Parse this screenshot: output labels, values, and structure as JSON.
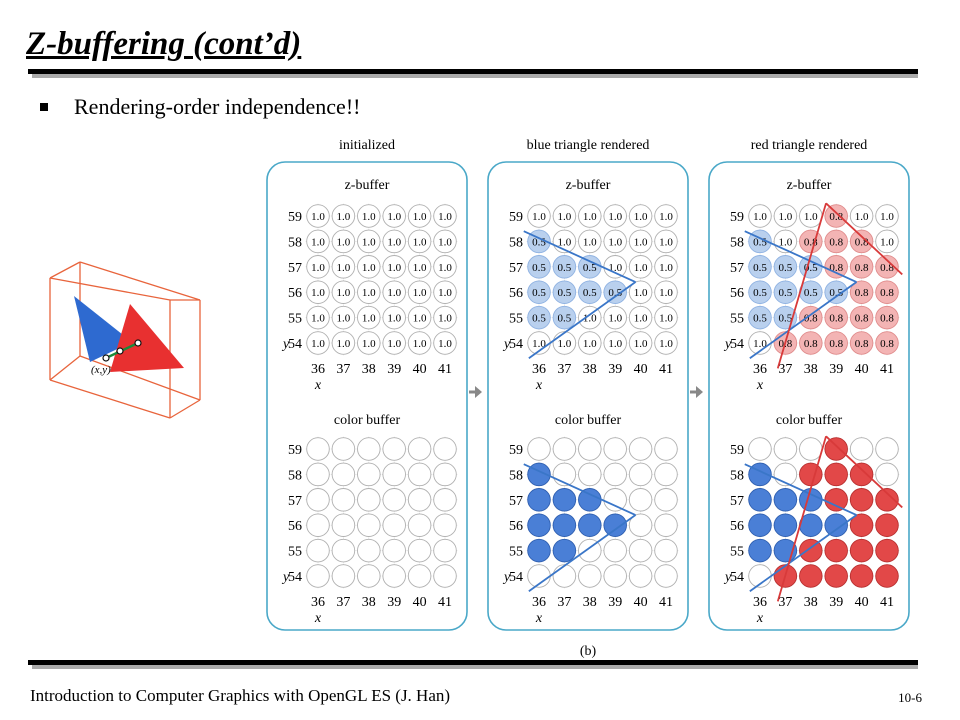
{
  "slide": {
    "title": "Z-buffering (cont’d)",
    "bullet": "Rendering-order independence!!",
    "footer": "Introduction to Computer Graphics with OpenGL ES (J. Han)",
    "page_number": "10-6"
  },
  "figure": {
    "caption": "(b)",
    "point_label": "(x,y)",
    "buffer_labels": {
      "z": "z-buffer",
      "color": "color buffer"
    },
    "axis_labels": {
      "x": "x",
      "y": "y"
    },
    "x_ticks": [
      "36",
      "37",
      "38",
      "39",
      "40",
      "41"
    ],
    "y_ticks": [
      "59",
      "58",
      "57",
      "56",
      "55",
      "54"
    ],
    "panels": [
      {
        "title": "initialized",
        "z_values": [
          [
            "1.0",
            "1.0",
            "1.0",
            "1.0",
            "1.0",
            "1.0"
          ],
          [
            "1.0",
            "1.0",
            "1.0",
            "1.0",
            "1.0",
            "1.0"
          ],
          [
            "1.0",
            "1.0",
            "1.0",
            "1.0",
            "1.0",
            "1.0"
          ],
          [
            "1.0",
            "1.0",
            "1.0",
            "1.0",
            "1.0",
            "1.0"
          ],
          [
            "1.0",
            "1.0",
            "1.0",
            "1.0",
            "1.0",
            "1.0"
          ],
          [
            "1.0",
            "1.0",
            "1.0",
            "1.0",
            "1.0",
            "1.0"
          ]
        ],
        "colors": [
          [
            "n",
            "n",
            "n",
            "n",
            "n",
            "n"
          ],
          [
            "n",
            "n",
            "n",
            "n",
            "n",
            "n"
          ],
          [
            "n",
            "n",
            "n",
            "n",
            "n",
            "n"
          ],
          [
            "n",
            "n",
            "n",
            "n",
            "n",
            "n"
          ],
          [
            "n",
            "n",
            "n",
            "n",
            "n",
            "n"
          ],
          [
            "n",
            "n",
            "n",
            "n",
            "n",
            "n"
          ]
        ]
      },
      {
        "title": "blue triangle rendered",
        "z_values": [
          [
            "1.0",
            "1.0",
            "1.0",
            "1.0",
            "1.0",
            "1.0"
          ],
          [
            "0.5",
            "1.0",
            "1.0",
            "1.0",
            "1.0",
            "1.0"
          ],
          [
            "0.5",
            "0.5",
            "0.5",
            "1.0",
            "1.0",
            "1.0"
          ],
          [
            "0.5",
            "0.5",
            "0.5",
            "0.5",
            "1.0",
            "1.0"
          ],
          [
            "0.5",
            "0.5",
            "1.0",
            "1.0",
            "1.0",
            "1.0"
          ],
          [
            "1.0",
            "1.0",
            "1.0",
            "1.0",
            "1.0",
            "1.0"
          ]
        ],
        "colors": [
          [
            "n",
            "n",
            "n",
            "n",
            "n",
            "n"
          ],
          [
            "b",
            "n",
            "n",
            "n",
            "n",
            "n"
          ],
          [
            "b",
            "b",
            "b",
            "n",
            "n",
            "n"
          ],
          [
            "b",
            "b",
            "b",
            "b",
            "n",
            "n"
          ],
          [
            "b",
            "b",
            "n",
            "n",
            "n",
            "n"
          ],
          [
            "n",
            "n",
            "n",
            "n",
            "n",
            "n"
          ]
        ]
      },
      {
        "title": "red triangle rendered",
        "z_values": [
          [
            "1.0",
            "1.0",
            "1.0",
            "0.8",
            "1.0",
            "1.0"
          ],
          [
            "0.5",
            "1.0",
            "0.8",
            "0.8",
            "0.8",
            "1.0"
          ],
          [
            "0.5",
            "0.5",
            "0.5",
            "0.8",
            "0.8",
            "0.8"
          ],
          [
            "0.5",
            "0.5",
            "0.5",
            "0.5",
            "0.8",
            "0.8"
          ],
          [
            "0.5",
            "0.5",
            "0.8",
            "0.8",
            "0.8",
            "0.8"
          ],
          [
            "1.0",
            "0.8",
            "0.8",
            "0.8",
            "0.8",
            "0.8"
          ]
        ],
        "colors": [
          [
            "n",
            "n",
            "n",
            "r",
            "n",
            "n"
          ],
          [
            "b",
            "n",
            "r",
            "r",
            "r",
            "n"
          ],
          [
            "b",
            "b",
            "b",
            "r",
            "r",
            "r"
          ],
          [
            "b",
            "b",
            "b",
            "b",
            "r",
            "r"
          ],
          [
            "b",
            "b",
            "r",
            "r",
            "r",
            "r"
          ],
          [
            "n",
            "r",
            "r",
            "r",
            "r",
            "r"
          ]
        ]
      }
    ]
  },
  "colors": {
    "blue_fill": "#4a7fd6",
    "blue_light": "#b9d0ee",
    "red_fill": "#e24848",
    "red_light": "#f3b4b4",
    "panel_border": "#4aa8c8",
    "box_orange": "#e8643c",
    "edge_blue": "#3a76c8",
    "edge_red": "#d83a3a"
  }
}
